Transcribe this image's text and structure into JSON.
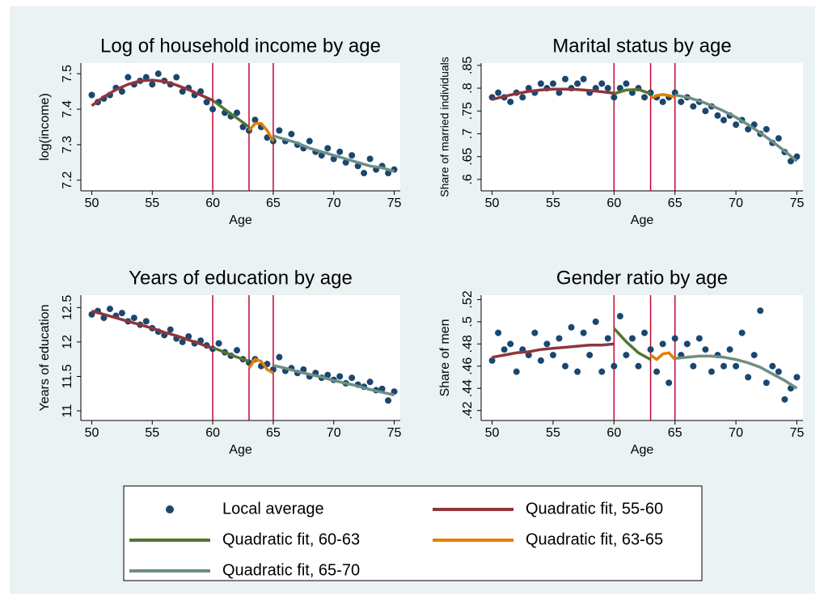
{
  "chart_data": [
    {
      "type": "scatter",
      "title": "Log of household income by age",
      "xlabel": "Age",
      "ylabel": "log(income)",
      "xlim": [
        49.1,
        75.5
      ],
      "xticks": [
        50,
        55,
        60,
        65,
        70,
        75
      ],
      "ylim": [
        7.17,
        7.53
      ],
      "yticks": [
        7.2,
        7.3,
        7.4,
        7.5
      ],
      "vlines": [
        60,
        63,
        65
      ],
      "points": {
        "x": [
          50,
          50.5,
          51,
          51.5,
          52,
          52.5,
          53,
          53.5,
          54,
          54.5,
          55,
          55.5,
          56,
          56.5,
          57,
          57.5,
          58,
          58.5,
          59,
          59.5,
          60,
          60.5,
          61,
          61.5,
          62,
          62.5,
          63,
          63.5,
          64,
          64.5,
          65,
          65.5,
          66,
          66.5,
          67,
          67.5,
          68,
          68.5,
          69,
          69.5,
          70,
          70.5,
          71,
          71.5,
          72,
          72.5,
          73,
          73.5,
          74,
          74.5,
          75
        ],
        "values": [
          7.44,
          7.42,
          7.43,
          7.44,
          7.46,
          7.45,
          7.49,
          7.47,
          7.48,
          7.49,
          7.47,
          7.5,
          7.48,
          7.47,
          7.49,
          7.45,
          7.46,
          7.44,
          7.45,
          7.42,
          7.4,
          7.42,
          7.39,
          7.38,
          7.39,
          7.35,
          7.34,
          7.37,
          7.35,
          7.32,
          7.31,
          7.34,
          7.31,
          7.33,
          7.3,
          7.29,
          7.31,
          7.28,
          7.27,
          7.29,
          7.26,
          7.28,
          7.25,
          7.27,
          7.24,
          7.22,
          7.26,
          7.23,
          7.24,
          7.22,
          7.23
        ]
      },
      "fits": [
        {
          "x": [
            50,
            51,
            52,
            53,
            54,
            55,
            56,
            57,
            58,
            59,
            60
          ],
          "values": [
            7.41,
            7.435,
            7.455,
            7.47,
            7.48,
            7.482,
            7.478,
            7.468,
            7.455,
            7.44,
            7.425
          ]
        },
        {
          "x": [
            60,
            61,
            62,
            63
          ],
          "values": [
            7.425,
            7.4,
            7.375,
            7.35
          ]
        },
        {
          "x": [
            63,
            63.5,
            64,
            64.5,
            65
          ],
          "values": [
            7.34,
            7.36,
            7.36,
            7.34,
            7.31
          ]
        },
        {
          "x": [
            65,
            66,
            67,
            68,
            69,
            70,
            71,
            72,
            73,
            74,
            75
          ],
          "values": [
            7.325,
            7.315,
            7.305,
            7.29,
            7.28,
            7.27,
            7.26,
            7.25,
            7.24,
            7.235,
            7.225
          ]
        }
      ]
    },
    {
      "type": "scatter",
      "title": "Marital status by age",
      "xlabel": "Age",
      "ylabel": "Share of married individuals",
      "xlim": [
        49.1,
        75.5
      ],
      "xticks": [
        50,
        55,
        60,
        65,
        70,
        75
      ],
      "ylim": [
        0.575,
        0.855
      ],
      "yticks": [
        {
          "value": 0.6,
          "label": ".6"
        },
        {
          "value": 0.65,
          "label": ".65"
        },
        {
          "value": 0.7,
          "label": ".7"
        },
        {
          "value": 0.75,
          "label": ".75"
        },
        {
          "value": 0.8,
          "label": ".8"
        },
        {
          "value": 0.85,
          "label": ".85"
        }
      ],
      "vlines": [
        60,
        63,
        65
      ],
      "points": {
        "x": [
          50,
          50.5,
          51,
          51.5,
          52,
          52.5,
          53,
          53.5,
          54,
          54.5,
          55,
          55.5,
          56,
          56.5,
          57,
          57.5,
          58,
          58.5,
          59,
          59.5,
          60,
          60.5,
          61,
          61.5,
          62,
          62.5,
          63,
          63.5,
          64,
          64.5,
          65,
          65.5,
          66,
          66.5,
          67,
          67.5,
          68,
          68.5,
          69,
          69.5,
          70,
          70.5,
          71,
          71.5,
          72,
          72.5,
          73,
          73.5,
          74,
          74.5,
          75
        ],
        "values": [
          0.78,
          0.79,
          0.78,
          0.77,
          0.79,
          0.78,
          0.8,
          0.79,
          0.81,
          0.8,
          0.81,
          0.79,
          0.82,
          0.8,
          0.81,
          0.82,
          0.79,
          0.8,
          0.81,
          0.8,
          0.78,
          0.8,
          0.81,
          0.79,
          0.8,
          0.78,
          0.79,
          0.78,
          0.77,
          0.78,
          0.79,
          0.77,
          0.78,
          0.76,
          0.77,
          0.75,
          0.76,
          0.74,
          0.73,
          0.74,
          0.72,
          0.73,
          0.71,
          0.72,
          0.7,
          0.71,
          0.68,
          0.69,
          0.66,
          0.64,
          0.65
        ]
      },
      "fits": [
        {
          "x": [
            50,
            51,
            52,
            53,
            54,
            55,
            56,
            57,
            58,
            59,
            60
          ],
          "values": [
            0.775,
            0.782,
            0.788,
            0.793,
            0.796,
            0.798,
            0.798,
            0.797,
            0.795,
            0.792,
            0.789
          ]
        },
        {
          "x": [
            60,
            61,
            62,
            63
          ],
          "values": [
            0.788,
            0.796,
            0.797,
            0.788
          ]
        },
        {
          "x": [
            63,
            63.5,
            64,
            64.5,
            65
          ],
          "values": [
            0.778,
            0.784,
            0.786,
            0.784,
            0.78
          ]
        },
        {
          "x": [
            65,
            66,
            67,
            68,
            69,
            70,
            71,
            72,
            73,
            74,
            75
          ],
          "values": [
            0.785,
            0.78,
            0.772,
            0.762,
            0.75,
            0.736,
            0.72,
            0.702,
            0.683,
            0.662,
            0.64
          ]
        }
      ]
    },
    {
      "type": "scatter",
      "title": "Years of education by age",
      "xlabel": "Age",
      "ylabel": "Years of education",
      "xlim": [
        49.1,
        75.5
      ],
      "xticks": [
        50,
        55,
        60,
        65,
        70,
        75
      ],
      "ylim": [
        10.86,
        12.68
      ],
      "yticks": [
        11,
        11.5,
        12,
        12.5
      ],
      "vlines": [
        60,
        63,
        65
      ],
      "points": {
        "x": [
          50,
          50.5,
          51,
          51.5,
          52,
          52.5,
          53,
          53.5,
          54,
          54.5,
          55,
          55.5,
          56,
          56.5,
          57,
          57.5,
          58,
          58.5,
          59,
          59.5,
          60,
          60.5,
          61,
          61.5,
          62,
          62.5,
          63,
          63.5,
          64,
          64.5,
          65,
          65.5,
          66,
          66.5,
          67,
          67.5,
          68,
          68.5,
          69,
          69.5,
          70,
          70.5,
          71,
          71.5,
          72,
          72.5,
          73,
          73.5,
          74,
          74.5,
          75
        ],
        "values": [
          12.4,
          12.45,
          12.35,
          12.48,
          12.38,
          12.42,
          12.3,
          12.35,
          12.25,
          12.3,
          12.2,
          12.15,
          12.1,
          12.18,
          12.05,
          12,
          12.08,
          11.98,
          12.02,
          11.95,
          11.9,
          11.98,
          11.85,
          11.8,
          11.88,
          11.75,
          11.7,
          11.75,
          11.65,
          11.68,
          11.6,
          11.78,
          11.58,
          11.62,
          11.55,
          11.6,
          11.5,
          11.55,
          11.48,
          11.52,
          11.45,
          11.5,
          11.4,
          11.48,
          11.38,
          11.35,
          11.42,
          11.3,
          11.32,
          11.15,
          11.28
        ]
      },
      "fits": [
        {
          "x": [
            50,
            51,
            52,
            53,
            54,
            55,
            56,
            57,
            58,
            59,
            60
          ],
          "values": [
            12.45,
            12.4,
            12.35,
            12.3,
            12.25,
            12.2,
            12.14,
            12.09,
            12.03,
            11.97,
            11.91
          ]
        },
        {
          "x": [
            60,
            61,
            62,
            63
          ],
          "values": [
            11.92,
            11.85,
            11.78,
            11.72
          ]
        },
        {
          "x": [
            63,
            63.5,
            64,
            64.5,
            65
          ],
          "values": [
            11.62,
            11.75,
            11.72,
            11.6,
            11.55
          ]
        },
        {
          "x": [
            65,
            66,
            67,
            68,
            69,
            70,
            71,
            72,
            73,
            74,
            75
          ],
          "values": [
            11.66,
            11.62,
            11.57,
            11.53,
            11.49,
            11.44,
            11.4,
            11.36,
            11.31,
            11.27,
            11.23
          ]
        }
      ]
    },
    {
      "type": "scatter",
      "title": "Gender ratio by age",
      "xlabel": "Age",
      "ylabel": "Share of men",
      "xlim": [
        49.1,
        75.5
      ],
      "xticks": [
        50,
        55,
        60,
        65,
        70,
        75
      ],
      "ylim": [
        0.411,
        0.524
      ],
      "yticks": [
        {
          "value": 0.42,
          "label": ".42"
        },
        {
          "value": 0.44,
          "label": ".44"
        },
        {
          "value": 0.46,
          "label": ".46"
        },
        {
          "value": 0.48,
          "label": ".48"
        },
        {
          "value": 0.5,
          "label": ".5"
        },
        {
          "value": 0.52,
          "label": ".52"
        }
      ],
      "vlines": [
        60,
        63,
        65
      ],
      "points": {
        "x": [
          50,
          50.5,
          51,
          51.5,
          52,
          52.5,
          53,
          53.5,
          54,
          54.5,
          55,
          55.5,
          56,
          56.5,
          57,
          57.5,
          58,
          58.5,
          59,
          59.5,
          60,
          60.5,
          61,
          61.5,
          62,
          62.5,
          63,
          63.5,
          64,
          64.5,
          65,
          65.5,
          66,
          66.5,
          67,
          67.5,
          68,
          68.5,
          69,
          69.5,
          70,
          70.5,
          71,
          71.5,
          72,
          72.5,
          73,
          73.5,
          74,
          74.5,
          75
        ],
        "values": [
          0.465,
          0.49,
          0.475,
          0.48,
          0.455,
          0.475,
          0.47,
          0.49,
          0.465,
          0.48,
          0.47,
          0.485,
          0.46,
          0.495,
          0.455,
          0.49,
          0.47,
          0.5,
          0.455,
          0.485,
          0.46,
          0.505,
          0.47,
          0.485,
          0.46,
          0.49,
          0.475,
          0.455,
          0.48,
          0.445,
          0.485,
          0.47,
          0.48,
          0.46,
          0.485,
          0.475,
          0.455,
          0.47,
          0.46,
          0.475,
          0.46,
          0.49,
          0.45,
          0.47,
          0.51,
          0.445,
          0.46,
          0.455,
          0.43,
          0.44,
          0.45
        ]
      },
      "fits": [
        {
          "x": [
            50,
            51,
            52,
            53,
            54,
            55,
            56,
            57,
            58,
            59,
            60
          ],
          "values": [
            0.468,
            0.47,
            0.472,
            0.473,
            0.475,
            0.476,
            0.477,
            0.478,
            0.479,
            0.479,
            0.48
          ]
        },
        {
          "x": [
            60,
            61,
            62,
            63
          ],
          "values": [
            0.494,
            0.482,
            0.472,
            0.466
          ]
        },
        {
          "x": [
            63,
            63.5,
            64,
            64.5,
            65
          ],
          "values": [
            0.47,
            0.466,
            0.471,
            0.472,
            0.466
          ]
        },
        {
          "x": [
            65,
            66,
            67,
            68,
            69,
            70,
            71,
            72,
            73,
            74,
            75
          ],
          "values": [
            0.467,
            0.468,
            0.469,
            0.469,
            0.468,
            0.466,
            0.463,
            0.459,
            0.453,
            0.447,
            0.44
          ]
        }
      ]
    }
  ],
  "vline_color": "#c10534",
  "legend": [
    {
      "name": "Local average",
      "color": "#1a476f"
    },
    {
      "name": "Quadratic fit, 55-60",
      "color": "#90353b"
    },
    {
      "name": "Quadratic fit, 60-63",
      "color": "#55752f"
    },
    {
      "name": "Quadratic fit, 63-65",
      "color": "#e37e00"
    },
    {
      "name": "Quadratic fit, 65-70",
      "color": "#6e8e84"
    }
  ]
}
